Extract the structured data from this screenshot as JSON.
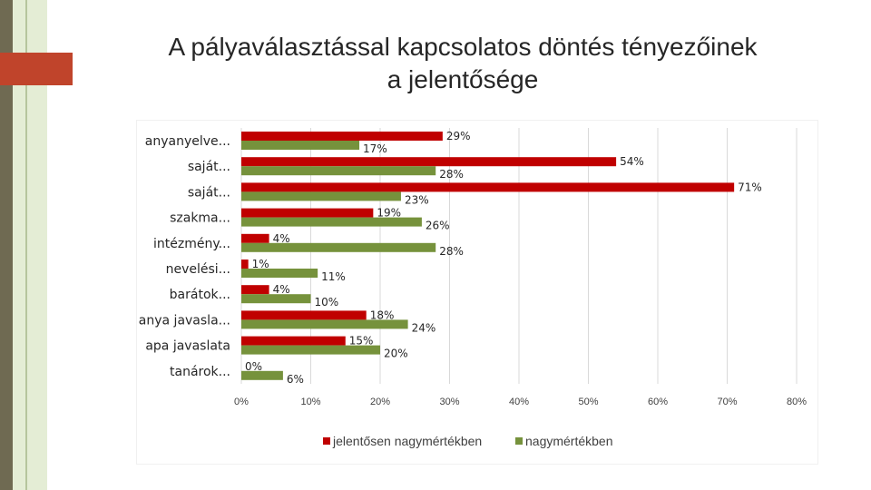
{
  "slide": {
    "title_line1": "A pályaválasztással kapcsolatos döntés tényezőinek",
    "title_line2": "a jelentősége"
  },
  "colors": {
    "series1": "#c00000",
    "series2": "#76923c",
    "grid": "#d9d9d9",
    "left_band": "#6f6a52",
    "green_band": "#e4edd5",
    "red_tab": "#c0442b"
  },
  "chart_data": {
    "type": "bar",
    "orientation": "horizontal",
    "categories": [
      "anyanyelve...",
      "saját...",
      "saját...",
      "szakma...",
      "intézmény...",
      "nevelési...",
      "barátok...",
      "anya javasla...",
      "apa javaslata",
      "tanárok..."
    ],
    "series": [
      {
        "name": "jelentősen nagymértékben",
        "values": [
          29,
          54,
          71,
          19,
          4,
          1,
          4,
          18,
          15,
          0
        ],
        "labels": [
          "29%",
          "54%",
          "71%",
          "19%",
          "4%",
          "1%",
          "4%",
          "18%",
          "15%",
          "0%"
        ]
      },
      {
        "name": "nagymértékben",
        "values": [
          17,
          28,
          23,
          26,
          28,
          11,
          10,
          24,
          20,
          6
        ],
        "labels": [
          "17%",
          "28%",
          "23%",
          "26%",
          "28%",
          "11%",
          "10%",
          "24%",
          "20%",
          "6%"
        ]
      }
    ],
    "x_ticks": [
      "0%",
      "10%",
      "20%",
      "30%",
      "40%",
      "50%",
      "60%",
      "70%",
      "80%"
    ],
    "xlim": [
      0,
      80
    ],
    "grid": true,
    "legend_position": "bottom"
  }
}
